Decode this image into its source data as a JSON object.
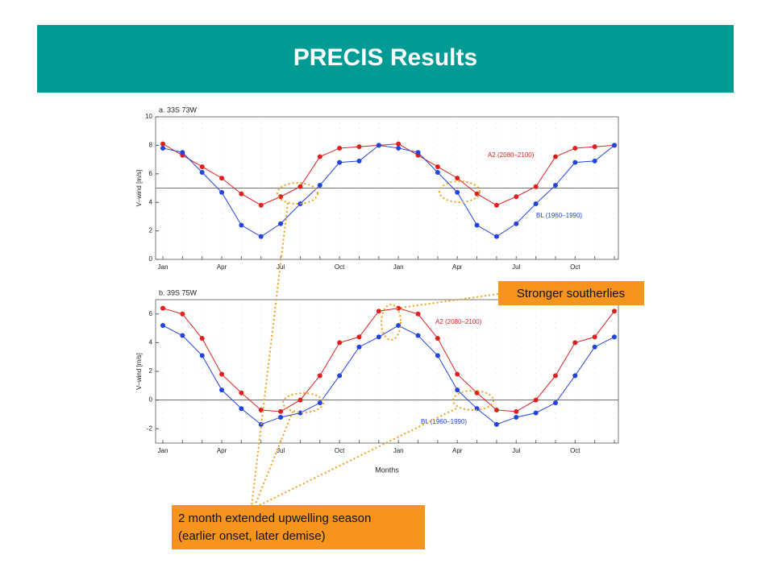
{
  "slide_title": "PRECIS Results",
  "callouts": {
    "southerlies": "Stronger southerlies",
    "upwelling": [
      "2 month extended upwelling season",
      "(earlier onset, later demise)"
    ]
  },
  "chart_data": [
    {
      "type": "line",
      "title": "a. 33S 73W",
      "ylabel": "V–wind [m/s]",
      "categories": [
        "Jan",
        null,
        null,
        "Apr",
        null,
        null,
        "Jul",
        null,
        null,
        "Oct",
        null,
        null,
        "Jan",
        null,
        null,
        "Apr",
        null,
        null,
        "Jul",
        null,
        null,
        "Oct",
        null,
        null
      ],
      "ylim": [
        0,
        10
      ],
      "yticks": [
        0,
        2,
        4,
        6,
        8,
        10
      ],
      "hline": 5,
      "series": [
        {
          "name": "A2 (2080–2100)",
          "color": "#e02020",
          "values": [
            8.1,
            7.3,
            6.5,
            5.7,
            4.6,
            3.8,
            4.4,
            5.1,
            7.2,
            7.8,
            7.9,
            8.0,
            8.1,
            7.3,
            6.5,
            5.7,
            4.6,
            3.8,
            4.4,
            5.1,
            7.2,
            7.8,
            7.9,
            8.0
          ]
        },
        {
          "name": "BL (1960–1990)",
          "color": "#2244dd",
          "values": [
            7.8,
            7.5,
            6.1,
            4.7,
            2.4,
            1.6,
            2.5,
            3.9,
            5.2,
            6.8,
            6.9,
            8.0,
            7.8,
            7.5,
            6.1,
            4.7,
            2.4,
            1.6,
            2.5,
            3.9,
            5.2,
            6.8,
            6.9,
            8.0
          ]
        }
      ]
    },
    {
      "type": "line",
      "title": "b. 39S 75W",
      "ylabel": "V–wind [m/s]",
      "xlabel": "Months",
      "categories": [
        "Jan",
        null,
        null,
        "Apr",
        null,
        null,
        "Jul",
        null,
        null,
        "Oct",
        null,
        null,
        "Jan",
        null,
        null,
        "Apr",
        null,
        null,
        "Jul",
        null,
        null,
        "Oct",
        null,
        null
      ],
      "ylim": [
        -3,
        7
      ],
      "yticks": [
        -2,
        0,
        2,
        4,
        6
      ],
      "hline": 0,
      "series": [
        {
          "name": "A2 (2080–2100)",
          "color": "#e02020",
          "values": [
            6.4,
            6.0,
            4.3,
            1.8,
            0.5,
            -0.7,
            -0.8,
            0.0,
            1.7,
            4.0,
            4.4,
            6.2,
            6.4,
            6.0,
            4.3,
            1.8,
            0.5,
            -0.7,
            -0.8,
            0.0,
            1.7,
            4.0,
            4.4,
            6.2
          ]
        },
        {
          "name": "BL (1960–1990)",
          "color": "#2244dd",
          "values": [
            5.2,
            4.5,
            3.1,
            0.7,
            -0.6,
            -1.7,
            -1.2,
            -0.9,
            -0.2,
            1.7,
            3.7,
            4.4,
            5.2,
            4.5,
            3.1,
            0.7,
            -0.6,
            -1.7,
            -1.2,
            -0.9,
            -0.2,
            1.7,
            3.7,
            4.4
          ]
        }
      ]
    }
  ]
}
